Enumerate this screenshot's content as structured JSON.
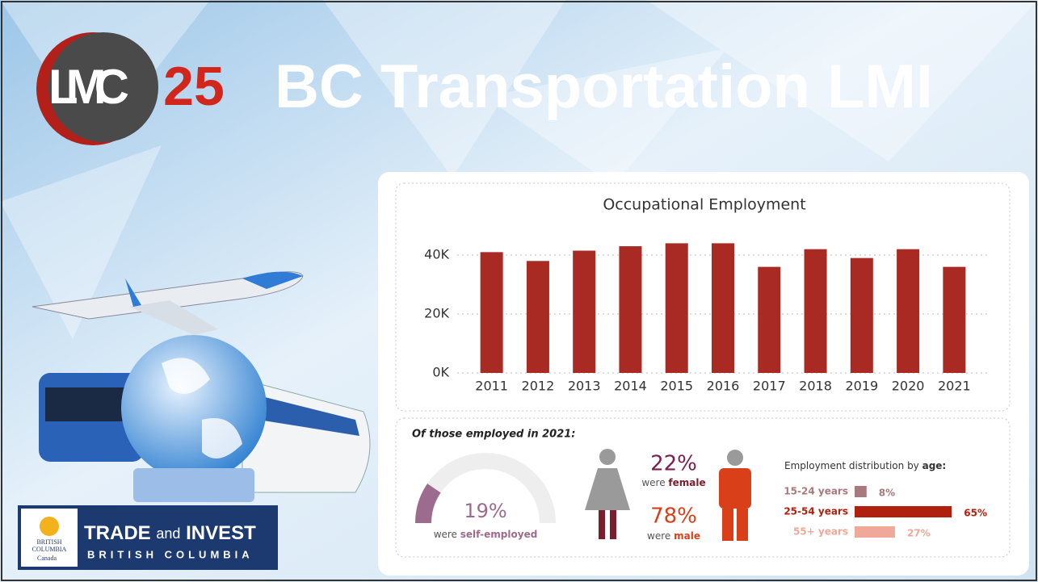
{
  "header": {
    "logo_left": "LMC",
    "logo_right": "25",
    "title": "BC Transportation LMI"
  },
  "chart_data": {
    "type": "bar",
    "title": "Occupational Employment",
    "categories": [
      "2011",
      "2012",
      "2013",
      "2014",
      "2015",
      "2016",
      "2017",
      "2018",
      "2019",
      "2020",
      "2021"
    ],
    "values": [
      41000,
      38000,
      41500,
      43000,
      44000,
      44000,
      36000,
      42000,
      39000,
      42000,
      36000
    ],
    "color": "#a82a22",
    "ylim": [
      0,
      46000
    ],
    "yticks": [
      {
        "value": 0,
        "label": "0K"
      },
      {
        "value": 20000,
        "label": "20K"
      },
      {
        "value": 40000,
        "label": "40K"
      }
    ],
    "grid": true
  },
  "infographic": {
    "heading": "Of those employed in 2021:",
    "self_employed": {
      "value": 19,
      "value_label": "19%",
      "text": "were",
      "emphasis": "self-employed",
      "color": "#9c6b8e"
    },
    "female": {
      "value": 22,
      "value_label": "22%",
      "text": "were",
      "emphasis": "female",
      "color": "#8a8a8a"
    },
    "male": {
      "value": 78,
      "value_label": "78%",
      "text": "were",
      "emphasis": "male",
      "color": "#d9401a"
    },
    "age": {
      "title": "Employment distribution by",
      "emphasis": "age:",
      "groups": [
        {
          "label": "15-24 years",
          "value": 8,
          "value_label": "8%",
          "color": "#a87a7c"
        },
        {
          "label": "25-54 years",
          "value": 65,
          "value_label": "65%",
          "color": "#b0200e"
        },
        {
          "label": "55+ years",
          "value": 27,
          "value_label": "27%",
          "color": "#f0a898"
        }
      ]
    }
  },
  "footer_logo": {
    "crest": [
      "BRITISH",
      "COLUMBIA"
    ],
    "country": "Canada",
    "line1_bold": "TRADE",
    "line1_mid": "and",
    "line1_end": "INVEST",
    "line2": "BRITISH COLUMBIA"
  }
}
